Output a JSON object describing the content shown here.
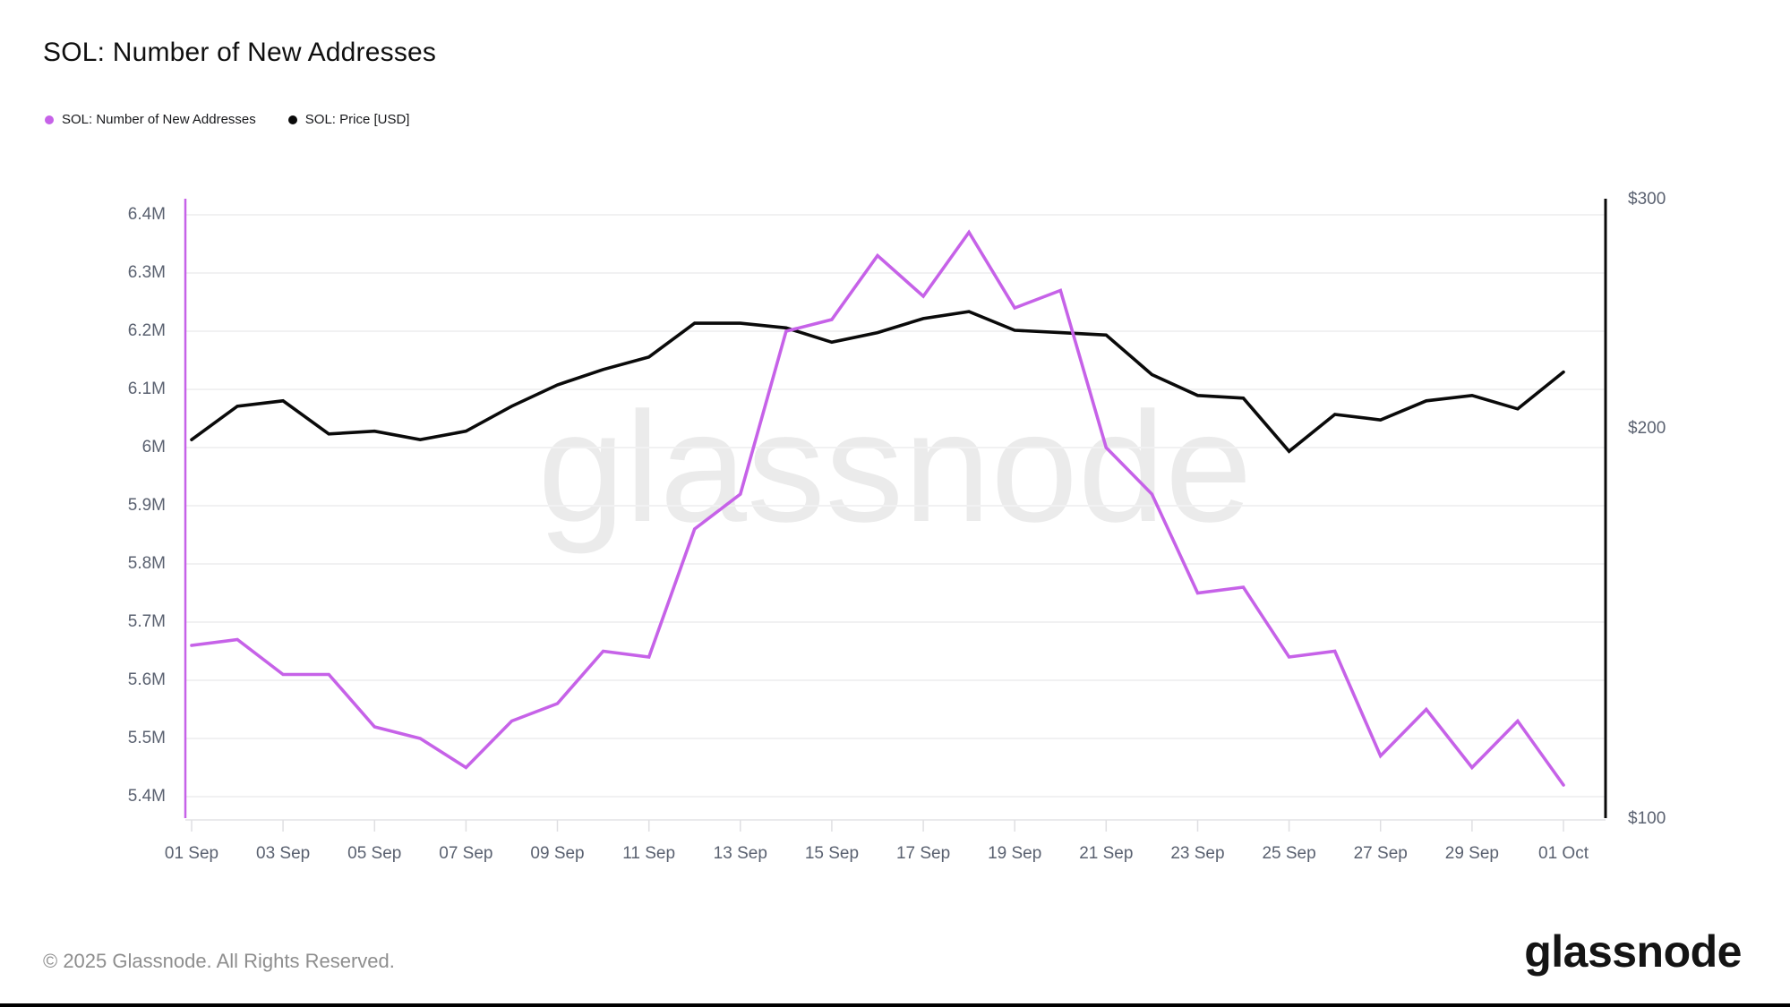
{
  "header": {
    "title": "SOL: Number of New Addresses",
    "legend": [
      {
        "label": "SOL: Number of New Addresses",
        "color": "#c662e8"
      },
      {
        "label": "SOL: Price [USD]",
        "color": "#0a0a0a"
      }
    ]
  },
  "chart_data": {
    "type": "line",
    "title": "SOL: Number of New Addresses",
    "grid": "horizontal",
    "legend_position": "top-left",
    "x": [
      "01 Sep",
      "02 Sep",
      "03 Sep",
      "04 Sep",
      "05 Sep",
      "06 Sep",
      "07 Sep",
      "08 Sep",
      "09 Sep",
      "10 Sep",
      "11 Sep",
      "12 Sep",
      "13 Sep",
      "14 Sep",
      "15 Sep",
      "16 Sep",
      "17 Sep",
      "18 Sep",
      "19 Sep",
      "20 Sep",
      "21 Sep",
      "22 Sep",
      "23 Sep",
      "24 Sep",
      "25 Sep",
      "26 Sep",
      "27 Sep",
      "28 Sep",
      "29 Sep",
      "30 Sep",
      "01 Oct"
    ],
    "series": [
      {
        "name": "SOL: Number of New Addresses",
        "axis": "left",
        "unit": "M addresses",
        "color": "#c662e8",
        "values": [
          5.66,
          5.67,
          5.61,
          5.61,
          5.52,
          5.5,
          5.45,
          5.53,
          5.56,
          5.65,
          5.64,
          5.86,
          5.92,
          6.2,
          6.22,
          6.33,
          6.26,
          6.37,
          6.24,
          6.27,
          6.0,
          5.92,
          5.75,
          5.76,
          5.64,
          5.65,
          5.47,
          5.55,
          5.45,
          5.53,
          5.42
        ]
      },
      {
        "name": "SOL: Price [USD]",
        "axis": "right",
        "unit": "USD",
        "color": "#0a0a0a",
        "values": [
          196,
          208,
          210,
          198,
          199,
          196,
          199,
          208,
          216,
          222,
          227,
          241,
          241,
          239,
          233,
          237,
          243,
          246,
          238,
          237,
          236,
          220,
          212,
          211,
          192,
          205,
          203,
          210,
          212,
          207,
          221
        ]
      }
    ],
    "left_axis": {
      "scale": "linear",
      "tick_labels": [
        "6.4M",
        "6.3M",
        "6.2M",
        "6.1M",
        "6M",
        "5.9M",
        "5.8M",
        "5.7M",
        "5.6M",
        "5.5M",
        "5.4M"
      ],
      "tick_values": [
        6.4,
        6.3,
        6.2,
        6.1,
        6.0,
        5.9,
        5.8,
        5.7,
        5.6,
        5.5,
        5.4
      ],
      "axis_color": "#c662e8"
    },
    "right_axis": {
      "scale": "log",
      "tick_labels": [
        "$300",
        "$200",
        "$100"
      ],
      "tick_values": [
        300,
        200,
        100
      ],
      "axis_color": "#0a0a0a"
    },
    "x_axis": {
      "tick_labels": [
        "01 Sep",
        "03 Sep",
        "05 Sep",
        "07 Sep",
        "09 Sep",
        "11 Sep",
        "13 Sep",
        "15 Sep",
        "17 Sep",
        "19 Sep",
        "21 Sep",
        "23 Sep",
        "25 Sep",
        "27 Sep",
        "29 Sep",
        "01 Oct"
      ],
      "tick_day_indexes": [
        0,
        2,
        4,
        6,
        8,
        10,
        12,
        14,
        16,
        18,
        20,
        22,
        24,
        26,
        28,
        30
      ]
    },
    "colors": {
      "gridline": "#f1f1f2",
      "axis_baseline": "#e4e4e6",
      "tick_mark": "#dfdfe2",
      "tick_text": "#5a6170"
    }
  },
  "watermark": {
    "text": "glassnode"
  },
  "footer": {
    "copyright": "© 2025 Glassnode. All Rights Reserved.",
    "logo_text": "glassnode"
  }
}
